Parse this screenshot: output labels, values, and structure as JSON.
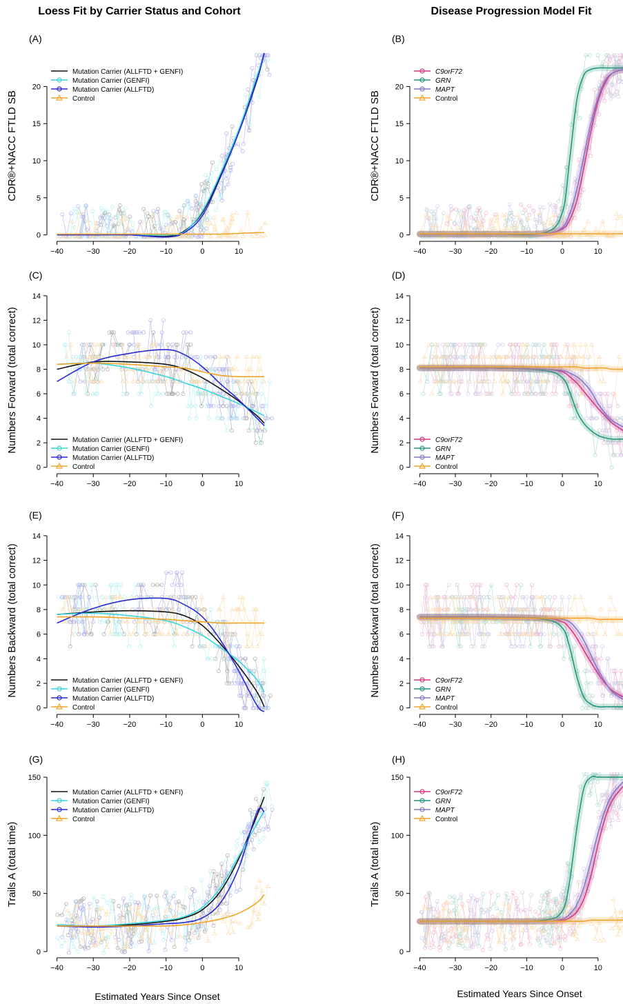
{
  "titles": {
    "left": "Loess Fit by Carrier Status and Cohort",
    "right": "Disease Progression Model Fit"
  },
  "xlabel": "Estimated Years Since Onset",
  "colors": {
    "black": "#111111",
    "cyan": "#38d6dc",
    "blue": "#2a2ad4",
    "orange": "#f2a42a",
    "c9": "#d6357f",
    "grn": "#26967a",
    "mapt": "#8a78c4"
  },
  "legend_left": [
    {
      "label": "Mutation Carrier (ALLFTD + GENFI)",
      "color": "#111111",
      "marker": "none"
    },
    {
      "label": "Mutation Carrier (GENFI)",
      "color": "#38d6dc",
      "marker": "circle"
    },
    {
      "label": "Mutation Carrier (ALLFTD)",
      "color": "#2a2ad4",
      "marker": "circle"
    },
    {
      "label": "Control",
      "color": "#f2a42a",
      "marker": "triangle"
    }
  ],
  "legend_right": [
    {
      "label": "C9orF72",
      "color": "#d6357f",
      "marker": "circle",
      "italic": true
    },
    {
      "label": "GRN",
      "color": "#26967a",
      "marker": "circle",
      "italic": true
    },
    {
      "label": "MAPT",
      "color": "#8a78c4",
      "marker": "circle",
      "italic": true
    },
    {
      "label": "Control",
      "color": "#f2a42a",
      "marker": "triangle",
      "italic": false
    }
  ],
  "chart_data": [
    {
      "type": "line",
      "panel": "(A)",
      "title": "Loess Fit by Carrier Status and Cohort",
      "ylabel": "CDR®+NACC FTLD SB",
      "xlabel": "Estimated Years Since Onset",
      "xlim": [
        -42,
        17
      ],
      "ylim": [
        -0.5,
        24.5
      ],
      "xticks": [
        -40,
        -30,
        -20,
        -10,
        0,
        10
      ],
      "yticks": [
        0,
        5,
        10,
        15,
        20
      ],
      "x": [
        -40,
        -30,
        -20,
        -10,
        -5,
        0,
        5,
        10,
        15,
        17
      ],
      "series": [
        {
          "name": "Mutation Carrier (ALLFTD + GENFI)",
          "color": "#111111",
          "values": [
            0,
            0,
            0,
            -0.2,
            0.5,
            3,
            8,
            14,
            21,
            24.5
          ]
        },
        {
          "name": "Mutation Carrier (GENFI)",
          "color": "#38d6dc",
          "values": [
            0,
            0,
            0,
            0,
            0.4,
            3.2,
            8.3,
            14.2,
            21.4,
            24.5
          ]
        },
        {
          "name": "Mutation Carrier (ALLFTD)",
          "color": "#2a2ad4",
          "values": [
            0,
            0,
            0,
            -0.3,
            0.3,
            2.6,
            7.8,
            13.8,
            20.8,
            24.5
          ]
        },
        {
          "name": "Control",
          "color": "#f2a42a",
          "values": [
            0.1,
            0.1,
            0.1,
            0.1,
            0.1,
            0.1,
            0.1,
            0.2,
            0.3,
            0.3
          ]
        }
      ]
    },
    {
      "type": "line",
      "panel": "(B)",
      "title": "Disease Progression Model Fit",
      "ylabel": "CDR®+NACC FTLD SB",
      "xlabel": "Estimated Years Since Onset",
      "xlim": [
        -42,
        17
      ],
      "ylim": [
        -0.5,
        24.5
      ],
      "xticks": [
        -40,
        -30,
        -20,
        -10,
        0,
        10
      ],
      "yticks": [
        0,
        5,
        10,
        15,
        20
      ],
      "x": [
        -40,
        -20,
        -5,
        0,
        2,
        4,
        6,
        8,
        10,
        12,
        14,
        17
      ],
      "series": [
        {
          "name": "C9orF72",
          "color": "#d6357f",
          "values": [
            0.1,
            0.1,
            0.2,
            0.8,
            2,
            4.5,
            9,
            14,
            18,
            20.5,
            21.8,
            22.3
          ]
        },
        {
          "name": "GRN",
          "color": "#26967a",
          "values": [
            0.1,
            0.1,
            0.3,
            3,
            10,
            18,
            21.5,
            22.3,
            22.5,
            22.5,
            22.5,
            22.5
          ]
        },
        {
          "name": "MAPT",
          "color": "#8a78c4",
          "values": [
            0.1,
            0.1,
            0.2,
            1,
            2.8,
            6,
            10.5,
            15,
            18.5,
            20.8,
            21.8,
            22.3
          ]
        },
        {
          "name": "Control",
          "color": "#f2a42a",
          "values": [
            0.15,
            0.15,
            0.15,
            0.15,
            0.15,
            0.15,
            0.15,
            0.15,
            0.15,
            0.15,
            0.15,
            0.15
          ]
        }
      ]
    },
    {
      "type": "line",
      "panel": "(C)",
      "ylabel": "Numbers Forward (total correct)",
      "xlabel": "Estimated Years Since Onset",
      "xlim": [
        -42,
        17
      ],
      "ylim": [
        -0.3,
        14.5
      ],
      "xticks": [
        -40,
        -30,
        -20,
        -10,
        0,
        10
      ],
      "yticks": [
        0,
        2,
        4,
        6,
        8,
        10,
        12,
        14
      ],
      "x": [
        -40,
        -30,
        -20,
        -10,
        -5,
        0,
        5,
        10,
        15,
        17
      ],
      "series": [
        {
          "name": "Mutation Carrier (ALLFTD + GENFI)",
          "color": "#111111",
          "values": [
            8,
            8.6,
            8.6,
            8.4,
            8,
            7.3,
            6.4,
            5.4,
            4.2,
            3.6
          ]
        },
        {
          "name": "Mutation Carrier (GENFI)",
          "color": "#38d6dc",
          "values": [
            8.4,
            8.5,
            8.1,
            7.4,
            6.9,
            6.4,
            5.8,
            5.2,
            4.5,
            4.2
          ]
        },
        {
          "name": "Mutation Carrier (ALLFTD)",
          "color": "#2a2ad4",
          "values": [
            7,
            8.6,
            9.3,
            9.6,
            9.2,
            8.2,
            6.8,
            5.5,
            4,
            3.4
          ]
        },
        {
          "name": "Control",
          "color": "#f2a42a",
          "values": [
            8.4,
            8.5,
            8.4,
            8.2,
            8.1,
            7.8,
            7.5,
            7.4,
            7.4,
            7.4
          ]
        }
      ]
    },
    {
      "type": "line",
      "panel": "(D)",
      "ylabel": "Numbers Forward (total correct)",
      "xlabel": "Estimated Years Since Onset",
      "xlim": [
        -42,
        17
      ],
      "ylim": [
        -0.3,
        14.5
      ],
      "xticks": [
        -40,
        -30,
        -20,
        -10,
        0,
        10
      ],
      "yticks": [
        0,
        2,
        4,
        6,
        8,
        10,
        12,
        14
      ],
      "x": [
        -40,
        -20,
        -5,
        0,
        2,
        4,
        6,
        8,
        10,
        12,
        14,
        17
      ],
      "series": [
        {
          "name": "C9orF72",
          "color": "#d6357f",
          "values": [
            8.1,
            8.1,
            8,
            7.8,
            7.4,
            6.9,
            6.2,
            5.5,
            4.8,
            4.2,
            3.6,
            3
          ]
        },
        {
          "name": "GRN",
          "color": "#26967a",
          "values": [
            8.1,
            8.1,
            7.9,
            7.3,
            6.2,
            4.6,
            3.6,
            3,
            2.6,
            2.4,
            2.3,
            2.3
          ]
        },
        {
          "name": "MAPT",
          "color": "#8a78c4",
          "values": [
            8.1,
            8.1,
            8,
            7.9,
            7.7,
            7.4,
            6.9,
            6.2,
            5.2,
            4.4,
            3.8,
            3.3
          ]
        },
        {
          "name": "Control",
          "color": "#f2a42a",
          "values": [
            8.2,
            8.2,
            8.2,
            8.2,
            8.2,
            8.2,
            8.1,
            8.1,
            8.1,
            8.1,
            8,
            8
          ]
        }
      ]
    },
    {
      "type": "line",
      "panel": "(E)",
      "ylabel": "Numbers Backward (total correct)",
      "xlabel": "Estimated Years Since Onset",
      "xlim": [
        -42,
        17
      ],
      "ylim": [
        -0.3,
        14.5
      ],
      "xticks": [
        -40,
        -30,
        -20,
        -10,
        0,
        10
      ],
      "yticks": [
        0,
        2,
        4,
        6,
        8,
        10,
        12,
        14
      ],
      "x": [
        -40,
        -30,
        -20,
        -10,
        -5,
        0,
        5,
        10,
        15,
        17
      ],
      "series": [
        {
          "name": "Mutation Carrier (ALLFTD + GENFI)",
          "color": "#111111",
          "values": [
            7.6,
            7.8,
            7.9,
            7.8,
            7.5,
            6.7,
            5.2,
            3.4,
            1.3,
            0.1
          ]
        },
        {
          "name": "Mutation Carrier (GENFI)",
          "color": "#38d6dc",
          "values": [
            7.6,
            7.7,
            7.5,
            7.1,
            6.6,
            5.9,
            4.9,
            3.8,
            2.3,
            1.3
          ]
        },
        {
          "name": "Mutation Carrier (ALLFTD)",
          "color": "#2a2ad4",
          "values": [
            6.9,
            8.1,
            8.8,
            8.9,
            8.4,
            7.4,
            5.5,
            3,
            0.2,
            -0.3
          ]
        },
        {
          "name": "Control",
          "color": "#f2a42a",
          "values": [
            7.4,
            7.4,
            7.3,
            7.2,
            7.1,
            7,
            6.9,
            6.9,
            6.9,
            6.9
          ]
        }
      ]
    },
    {
      "type": "line",
      "panel": "(F)",
      "ylabel": "Numbers Backward (total correct)",
      "xlabel": "Estimated Years Since Onset",
      "xlim": [
        -42,
        17
      ],
      "ylim": [
        -0.3,
        14.5
      ],
      "xticks": [
        -40,
        -30,
        -20,
        -10,
        0,
        10
      ],
      "yticks": [
        0,
        2,
        4,
        6,
        8,
        10,
        12,
        14
      ],
      "x": [
        -40,
        -20,
        -5,
        0,
        2,
        4,
        6,
        8,
        10,
        12,
        14,
        17
      ],
      "series": [
        {
          "name": "C9orF72",
          "color": "#d6357f",
          "values": [
            7.4,
            7.4,
            7.3,
            7,
            6.5,
            5.7,
            4.7,
            3.7,
            2.8,
            2,
            1.4,
            0.9
          ]
        },
        {
          "name": "GRN",
          "color": "#26967a",
          "values": [
            7.4,
            7.4,
            7.2,
            6.5,
            5,
            2.6,
            0.9,
            0.3,
            0.1,
            0.1,
            0.1,
            0.1
          ]
        },
        {
          "name": "MAPT",
          "color": "#8a78c4",
          "values": [
            7.4,
            7.4,
            7.3,
            7.2,
            7,
            6.4,
            5.5,
            4.3,
            3.1,
            2.1,
            1.3,
            0.7
          ]
        },
        {
          "name": "Control",
          "color": "#f2a42a",
          "values": [
            7.3,
            7.3,
            7.3,
            7.3,
            7.3,
            7.3,
            7.3,
            7.3,
            7.2,
            7.2,
            7.2,
            7.2
          ]
        }
      ]
    },
    {
      "type": "line",
      "panel": "(G)",
      "ylabel": "Trails A (total time)",
      "xlabel": "Estimated Years Since Onset",
      "xlim": [
        -42,
        17
      ],
      "ylim": [
        -3,
        153
      ],
      "xticks": [
        -40,
        -30,
        -20,
        -10,
        0,
        10
      ],
      "yticks": [
        0,
        50,
        100,
        150
      ],
      "x": [
        -40,
        -30,
        -20,
        -10,
        -5,
        0,
        5,
        10,
        15,
        17
      ],
      "series": [
        {
          "name": "Mutation Carrier (ALLFTD + GENFI)",
          "color": "#111111",
          "values": [
            23,
            22,
            23,
            26,
            29,
            36,
            52,
            80,
            117,
            133
          ]
        },
        {
          "name": "Mutation Carrier (GENFI)",
          "color": "#38d6dc",
          "values": [
            23,
            22,
            24,
            27,
            30,
            38,
            55,
            82,
            110,
            121
          ]
        },
        {
          "name": "Mutation Carrier (ALLFTD)",
          "color": "#2a2ad4",
          "values": [
            22,
            21,
            22,
            24,
            25,
            29,
            42,
            72,
            120,
            120
          ]
        },
        {
          "name": "Control",
          "color": "#f2a42a",
          "values": [
            22,
            22,
            22,
            22,
            23,
            25,
            28,
            33,
            42,
            49
          ]
        }
      ]
    },
    {
      "type": "line",
      "panel": "(H)",
      "ylabel": "Trails A (total time)",
      "xlabel": "Estimated Years Since Onset",
      "xlim": [
        -42,
        17
      ],
      "ylim": [
        -3,
        153
      ],
      "xticks": [
        -40,
        -30,
        -20,
        -10,
        0,
        10
      ],
      "yticks": [
        0,
        50,
        100,
        150
      ],
      "x": [
        -40,
        -20,
        -5,
        0,
        2,
        4,
        6,
        8,
        10,
        12,
        14,
        17
      ],
      "series": [
        {
          "name": "C9orF72",
          "color": "#d6357f",
          "values": [
            26,
            26,
            26,
            27,
            29,
            34,
            45,
            65,
            92,
            115,
            130,
            142
          ]
        },
        {
          "name": "GRN",
          "color": "#26967a",
          "values": [
            26,
            26,
            27,
            35,
            60,
            105,
            140,
            150,
            150,
            150,
            150,
            150
          ]
        },
        {
          "name": "MAPT",
          "color": "#8a78c4",
          "values": [
            26,
            26,
            26,
            28,
            32,
            40,
            55,
            78,
            102,
            122,
            135,
            146
          ]
        },
        {
          "name": "Control",
          "color": "#f2a42a",
          "values": [
            26,
            26,
            26,
            26,
            26,
            26,
            26,
            27,
            27,
            27,
            27,
            27
          ]
        }
      ]
    }
  ]
}
